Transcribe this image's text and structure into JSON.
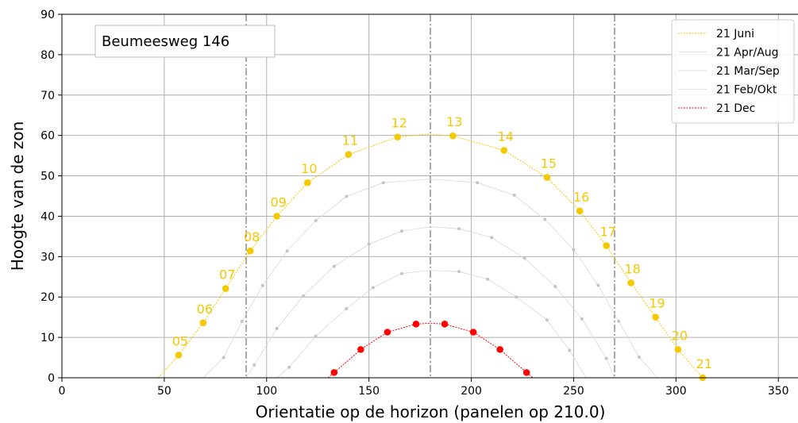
{
  "chart_data": {
    "type": "line",
    "title": "",
    "annotation": "Beumeesweg 146",
    "xlabel": "Orientatie op de horizon (panelen op 210.0)",
    "ylabel": "Hoogte van de zon",
    "xlim": [
      0,
      360
    ],
    "ylim": [
      0,
      90
    ],
    "xticks": [
      0,
      50,
      100,
      150,
      200,
      250,
      300,
      350
    ],
    "yticks": [
      0,
      10,
      20,
      30,
      40,
      50,
      60,
      70,
      80,
      90
    ],
    "grid": true,
    "legend_position": "top-right",
    "reference_lines_x": [
      90,
      180,
      270
    ],
    "series": [
      {
        "name": "21 Juni",
        "color": "#f5c800",
        "curve": [
          [
            47,
            0
          ],
          [
            57,
            5.6
          ],
          [
            69,
            13.6
          ],
          [
            80,
            22.1
          ],
          [
            92,
            31.4
          ],
          [
            105,
            40
          ],
          [
            120,
            48.3
          ],
          [
            140,
            55.3
          ],
          [
            164,
            59.6
          ],
          [
            178,
            60.3
          ],
          [
            191,
            59.9
          ],
          [
            216,
            56.3
          ],
          [
            237,
            49.6
          ],
          [
            253,
            41.3
          ],
          [
            266,
            32.7
          ],
          [
            278,
            23.5
          ],
          [
            290,
            15
          ],
          [
            301,
            7
          ],
          [
            313,
            0
          ]
        ],
        "points": [
          [
            57,
            5.6
          ],
          [
            69,
            13.6
          ],
          [
            80,
            22.1
          ],
          [
            92,
            31.4
          ],
          [
            105,
            40
          ],
          [
            120,
            48.3
          ],
          [
            140,
            55.3
          ],
          [
            164,
            59.6
          ],
          [
            191,
            59.9
          ],
          [
            216,
            56.3
          ],
          [
            237,
            49.6
          ],
          [
            253,
            41.3
          ],
          [
            266,
            32.7
          ],
          [
            278,
            23.5
          ],
          [
            290,
            15
          ],
          [
            301,
            7
          ],
          [
            313,
            0
          ]
        ],
        "hour_labels": [
          {
            "x": 57,
            "y": 5.6,
            "text": "05"
          },
          {
            "x": 69,
            "y": 13.6,
            "text": "06"
          },
          {
            "x": 80,
            "y": 22.1,
            "text": "07"
          },
          {
            "x": 92,
            "y": 31.4,
            "text": "08"
          },
          {
            "x": 105,
            "y": 40,
            "text": "09"
          },
          {
            "x": 120,
            "y": 48.3,
            "text": "10"
          },
          {
            "x": 140,
            "y": 55.3,
            "text": "11"
          },
          {
            "x": 164,
            "y": 59.6,
            "text": "12"
          },
          {
            "x": 191,
            "y": 59.9,
            "text": "13"
          },
          {
            "x": 216,
            "y": 56.3,
            "text": "14"
          },
          {
            "x": 237,
            "y": 49.6,
            "text": "15"
          },
          {
            "x": 253,
            "y": 41.3,
            "text": "16"
          },
          {
            "x": 266,
            "y": 32.7,
            "text": "17"
          },
          {
            "x": 278,
            "y": 23.5,
            "text": "18"
          },
          {
            "x": 290,
            "y": 15,
            "text": "19"
          },
          {
            "x": 301,
            "y": 7,
            "text": "20"
          },
          {
            "x": 313,
            "y": 0,
            "text": "21"
          }
        ]
      },
      {
        "name": "21 Apr/Aug",
        "color": "#bbbbbb",
        "curve": [
          [
            69,
            0
          ],
          [
            79,
            5
          ],
          [
            88,
            14
          ],
          [
            98,
            22.8
          ],
          [
            110,
            31.4
          ],
          [
            124,
            38.9
          ],
          [
            139,
            44.9
          ],
          [
            157,
            48.3
          ],
          [
            180,
            49.2
          ],
          [
            203,
            48.3
          ],
          [
            221,
            45.2
          ],
          [
            236,
            39.2
          ],
          [
            250,
            31.7
          ],
          [
            262,
            22.9
          ],
          [
            272,
            14
          ],
          [
            282,
            5.1
          ],
          [
            291,
            0
          ]
        ],
        "points": [
          [
            79,
            5
          ],
          [
            88,
            14
          ],
          [
            98,
            22.8
          ],
          [
            110,
            31.4
          ],
          [
            124,
            38.9
          ],
          [
            139,
            44.9
          ],
          [
            157,
            48.3
          ],
          [
            203,
            48.3
          ],
          [
            221,
            45.2
          ],
          [
            236,
            39.2
          ],
          [
            250,
            31.7
          ],
          [
            262,
            22.9
          ],
          [
            272,
            14
          ],
          [
            282,
            5.1
          ]
        ]
      },
      {
        "name": "21 Mar/Sep",
        "color": "#bbbbbb",
        "curve": [
          [
            90,
            0
          ],
          [
            94,
            3.2
          ],
          [
            105,
            12.2
          ],
          [
            118,
            20.3
          ],
          [
            133,
            27.6
          ],
          [
            150,
            33.1
          ],
          [
            166,
            36.3
          ],
          [
            180,
            37.4
          ],
          [
            194,
            36.9
          ],
          [
            210,
            34.7
          ],
          [
            226,
            29.6
          ],
          [
            241,
            22.6
          ],
          [
            254,
            14.6
          ],
          [
            266,
            4.8
          ],
          [
            270,
            0
          ]
        ],
        "points": [
          [
            94,
            3.2
          ],
          [
            105,
            12.2
          ],
          [
            118,
            20.3
          ],
          [
            133,
            27.6
          ],
          [
            150,
            33.1
          ],
          [
            166,
            36.3
          ],
          [
            194,
            36.9
          ],
          [
            210,
            34.7
          ],
          [
            226,
            29.6
          ],
          [
            241,
            22.6
          ],
          [
            254,
            14.6
          ],
          [
            266,
            4.8
          ]
        ]
      },
      {
        "name": "21 Feb/Okt",
        "color": "#bbbbbb",
        "curve": [
          [
            105,
            0
          ],
          [
            111,
            2.6
          ],
          [
            124,
            10.3
          ],
          [
            139,
            17.1
          ],
          [
            152,
            22.3
          ],
          [
            166,
            25.8
          ],
          [
            180,
            26.6
          ],
          [
            194,
            26.3
          ],
          [
            208,
            24.4
          ],
          [
            222,
            20
          ],
          [
            237,
            14.3
          ],
          [
            248,
            6.8
          ],
          [
            256,
            0
          ]
        ],
        "points": [
          [
            111,
            2.6
          ],
          [
            124,
            10.3
          ],
          [
            139,
            17.1
          ],
          [
            152,
            22.3
          ],
          [
            166,
            25.8
          ],
          [
            194,
            26.3
          ],
          [
            208,
            24.4
          ],
          [
            222,
            20
          ],
          [
            237,
            14.3
          ],
          [
            248,
            6.8
          ]
        ]
      },
      {
        "name": "21 Dec",
        "color": "#ff0000",
        "curve": [
          [
            130,
            0
          ],
          [
            133,
            1.3
          ],
          [
            146,
            7
          ],
          [
            159,
            11.3
          ],
          [
            173,
            13.3
          ],
          [
            180,
            13.5
          ],
          [
            187,
            13.3
          ],
          [
            201,
            11.3
          ],
          [
            214,
            7
          ],
          [
            227,
            1.3
          ],
          [
            230,
            0
          ]
        ],
        "points": [
          [
            133,
            1.3
          ],
          [
            146,
            7
          ],
          [
            159,
            11.3
          ],
          [
            173,
            13.3
          ],
          [
            187,
            13.3
          ],
          [
            201,
            11.3
          ],
          [
            214,
            7
          ],
          [
            227,
            1.3
          ]
        ]
      }
    ]
  }
}
